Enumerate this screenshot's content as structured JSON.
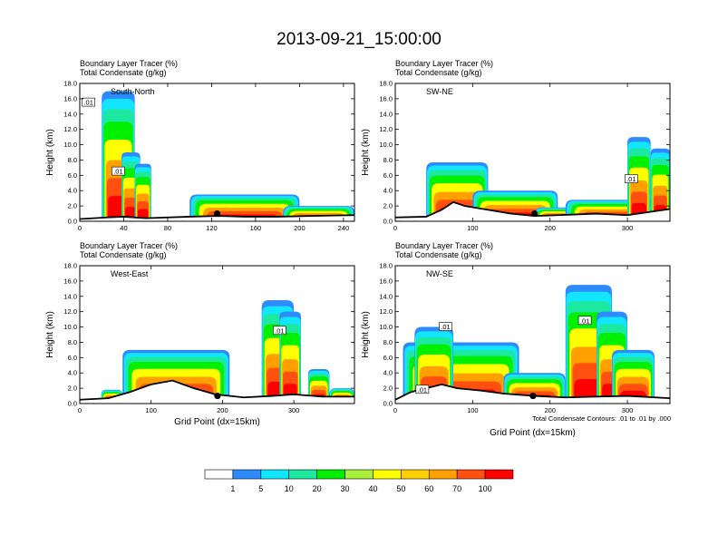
{
  "figure": {
    "title": "2013-09-21_15:00:00",
    "footnote": "Total Condensate Contours: .01 to .01 by .000"
  },
  "chart_data": [
    {
      "type": "heatmap",
      "panel": "South-North",
      "title_line1": "Boundary Layer Tracer    (%)",
      "title_line2": "Total Condensate    (g/kg)",
      "ylabel": "Height (km)",
      "xlabel": "",
      "xlim": [
        0,
        250
      ],
      "ylim": [
        0,
        18
      ],
      "xticks": [
        0,
        40,
        80,
        120,
        160,
        200,
        240
      ],
      "yticks": [
        0,
        2,
        4,
        6,
        8,
        10,
        12,
        14,
        16,
        18
      ],
      "terrain": [
        [
          0,
          0.3
        ],
        [
          25,
          0.5
        ],
        [
          40,
          0.6
        ],
        [
          60,
          0.4
        ],
        [
          80,
          0.5
        ],
        [
          100,
          0.6
        ],
        [
          125,
          0.7
        ],
        [
          150,
          0.6
        ],
        [
          180,
          0.6
        ],
        [
          210,
          0.7
        ],
        [
          250,
          0.8
        ]
      ],
      "plumes": [
        {
          "x0": 20,
          "x1": 50,
          "top": 17.0
        },
        {
          "x0": 38,
          "x1": 55,
          "top": 9.0
        },
        {
          "x0": 50,
          "x1": 65,
          "top": 7.5
        },
        {
          "x0": 100,
          "x1": 200,
          "top": 3.5
        },
        {
          "x0": 185,
          "x1": 250,
          "top": 2.0
        }
      ],
      "contour_labels": [
        {
          "x": 8,
          "y": 15.5,
          "text": ".01"
        },
        {
          "x": 35,
          "y": 6.5,
          "text": ".01"
        }
      ],
      "marker": [
        125,
        1.0
      ]
    },
    {
      "type": "heatmap",
      "panel": "SW-NE",
      "title_line1": "Boundary Layer Tracer    (%)",
      "title_line2": "Total Condensate    (g/kg)",
      "ylabel": "Height (km)",
      "xlabel": "",
      "xlim": [
        0,
        355
      ],
      "ylim": [
        0,
        18
      ],
      "xticks": [
        0,
        100,
        200,
        300
      ],
      "yticks": [
        0,
        2,
        4,
        6,
        8,
        10,
        12,
        14,
        16,
        18
      ],
      "terrain": [
        [
          0,
          0.5
        ],
        [
          40,
          0.6
        ],
        [
          60,
          1.5
        ],
        [
          75,
          2.5
        ],
        [
          90,
          2.0
        ],
        [
          120,
          1.5
        ],
        [
          150,
          1.0
        ],
        [
          180,
          0.7
        ],
        [
          210,
          0.8
        ],
        [
          260,
          1.0
        ],
        [
          300,
          0.8
        ],
        [
          355,
          1.6
        ]
      ],
      "plumes": [
        {
          "x0": 40,
          "x1": 120,
          "top": 7.7
        },
        {
          "x0": 100,
          "x1": 210,
          "top": 4.0
        },
        {
          "x0": 180,
          "x1": 240,
          "top": 1.8
        },
        {
          "x0": 220,
          "x1": 355,
          "top": 2.8
        },
        {
          "x0": 300,
          "x1": 330,
          "top": 11.0
        },
        {
          "x0": 330,
          "x1": 355,
          "top": 9.5
        }
      ],
      "contour_labels": [
        {
          "x": 305,
          "y": 5.5,
          "text": ".01"
        }
      ],
      "marker": [
        180,
        1.0
      ]
    },
    {
      "type": "heatmap",
      "panel": "West-East",
      "title_line1": "Boundary Layer Tracer    (%)",
      "title_line2": "Total Condensate    (g/kg)",
      "ylabel": "Height (km)",
      "xlabel": "Grid Point (dx=15km)",
      "xlim": [
        0,
        385
      ],
      "ylim": [
        0,
        18
      ],
      "xticks": [
        0,
        100,
        200,
        300
      ],
      "yticks": [
        0,
        2,
        4,
        6,
        8,
        10,
        12,
        14,
        16,
        18
      ],
      "terrain": [
        [
          0,
          0.5
        ],
        [
          40,
          0.7
        ],
        [
          70,
          1.5
        ],
        [
          100,
          2.5
        ],
        [
          130,
          3.0
        ],
        [
          160,
          2.0
        ],
        [
          190,
          1.2
        ],
        [
          230,
          0.8
        ],
        [
          270,
          1.0
        ],
        [
          300,
          1.2
        ],
        [
          340,
          0.9
        ],
        [
          385,
          0.9
        ]
      ],
      "plumes": [
        {
          "x0": 60,
          "x1": 210,
          "top": 7.0
        },
        {
          "x0": 30,
          "x1": 60,
          "top": 1.8
        },
        {
          "x0": 255,
          "x1": 300,
          "top": 13.5
        },
        {
          "x0": 280,
          "x1": 310,
          "top": 12.0
        },
        {
          "x0": 320,
          "x1": 350,
          "top": 4.5
        },
        {
          "x0": 350,
          "x1": 385,
          "top": 2.0
        }
      ],
      "contour_labels": [
        {
          "x": 280,
          "y": 9.5,
          "text": ".01"
        }
      ],
      "marker": [
        193,
        1.0
      ]
    },
    {
      "type": "heatmap",
      "panel": "NW-SE",
      "title_line1": "Boundary Layer Tracer    (%)",
      "title_line2": "Total Condensate    (g/kg)",
      "ylabel": "Height (km)",
      "xlabel": "Grid Point (dx=15km)",
      "xlim": [
        0,
        355
      ],
      "ylim": [
        0,
        18
      ],
      "xticks": [
        0,
        100,
        200,
        300
      ],
      "yticks": [
        0,
        2,
        4,
        6,
        8,
        10,
        12,
        14,
        16,
        18
      ],
      "terrain": [
        [
          0,
          0.5
        ],
        [
          20,
          1.5
        ],
        [
          40,
          2.0
        ],
        [
          60,
          2.5
        ],
        [
          80,
          2.0
        ],
        [
          110,
          1.7
        ],
        [
          140,
          1.3
        ],
        [
          180,
          1.0
        ],
        [
          220,
          0.8
        ],
        [
          260,
          0.9
        ],
        [
          300,
          1.0
        ],
        [
          355,
          0.7
        ]
      ],
      "plumes": [
        {
          "x0": 10,
          "x1": 160,
          "top": 8.0
        },
        {
          "x0": 25,
          "x1": 75,
          "top": 10.0
        },
        {
          "x0": 140,
          "x1": 220,
          "top": 4.0
        },
        {
          "x0": 220,
          "x1": 280,
          "top": 15.5
        },
        {
          "x0": 260,
          "x1": 300,
          "top": 12.0
        },
        {
          "x0": 280,
          "x1": 335,
          "top": 7.0
        }
      ],
      "contour_labels": [
        {
          "x": 65,
          "y": 10.0,
          "text": ".01"
        },
        {
          "x": 245,
          "y": 10.8,
          "text": ".01"
        },
        {
          "x": 35,
          "y": 1.8,
          "text": ".01"
        }
      ],
      "marker": [
        178,
        1.0
      ]
    }
  ],
  "colorbar": {
    "colors": [
      "#ffffff",
      "#2e8bff",
      "#12e6ff",
      "#1ce8a0",
      "#00f000",
      "#a8f03a",
      "#ffff00",
      "#ffd000",
      "#ffa000",
      "#ff5010",
      "#ff0000"
    ],
    "labels": [
      "1",
      "5",
      "10",
      "20",
      "30",
      "40",
      "50",
      "60",
      "70",
      "100"
    ]
  }
}
